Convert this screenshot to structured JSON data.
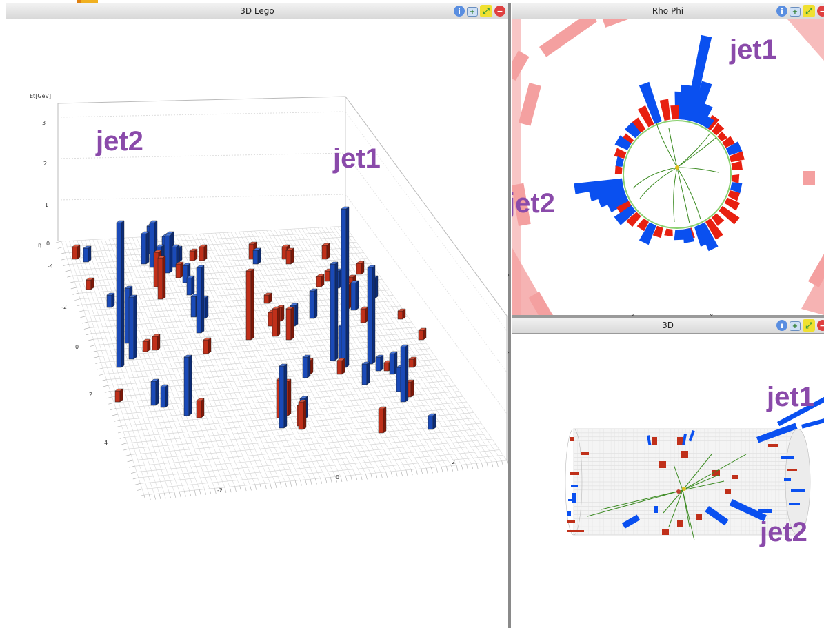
{
  "lego": {
    "title": "3D Lego",
    "axis_z_label": "Et[GeV]",
    "axis_eta_label": "η",
    "z_ticks": [
      "3",
      "2",
      "1",
      "0"
    ],
    "eta_ticks": [
      "-4",
      "-2",
      "0",
      "2",
      "4"
    ],
    "phi_ticks": [
      "-2",
      "0",
      "2"
    ],
    "jet1_label": "jet1",
    "jet2_label": "jet2"
  },
  "rhophi": {
    "title": "Rho Phi",
    "jet1_label": "jet1",
    "jet2_label": "jet2"
  },
  "view3d": {
    "title": "3D",
    "jet1_label": "jet1",
    "jet2_label": "jet2"
  },
  "colors": {
    "ecal": "#c0301a",
    "hcal": "#1a4ab8",
    "rhophi_ecal": "#e82010",
    "rhophi_hcal": "#0a50f0",
    "muon": "#f4a0a0",
    "track": "#3a8a20",
    "label": "#8a4aaa"
  },
  "icons": [
    "info-icon",
    "new-window-icon",
    "maximize-icon",
    "close-icon"
  ]
}
